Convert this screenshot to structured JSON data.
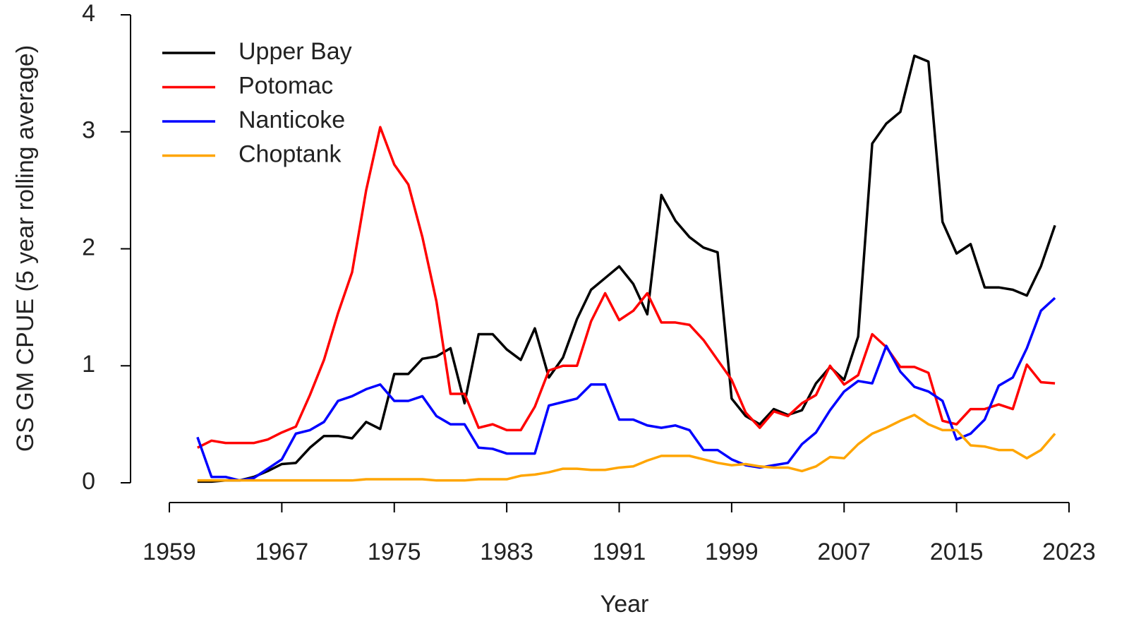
{
  "chart_data": {
    "type": "line",
    "xlabel": "Year",
    "ylabel": "GS GM CPUE (5 year rolling average)",
    "x": [
      1961,
      1962,
      1963,
      1964,
      1965,
      1966,
      1967,
      1968,
      1969,
      1970,
      1971,
      1972,
      1973,
      1974,
      1975,
      1976,
      1977,
      1978,
      1979,
      1980,
      1981,
      1982,
      1983,
      1984,
      1985,
      1986,
      1987,
      1988,
      1989,
      1990,
      1991,
      1992,
      1993,
      1994,
      1995,
      1996,
      1997,
      1998,
      1999,
      2000,
      2001,
      2002,
      2003,
      2004,
      2005,
      2006,
      2007,
      2008,
      2009,
      2010,
      2011,
      2012,
      2013,
      2014,
      2015,
      2016,
      2017,
      2018,
      2019,
      2020,
      2021,
      2022
    ],
    "series": [
      {
        "name": "Upper Bay",
        "color": "#000000",
        "values": [
          0.01,
          0.01,
          0.02,
          0.02,
          0.05,
          0.1,
          0.16,
          0.17,
          0.3,
          0.4,
          0.4,
          0.38,
          0.52,
          0.46,
          0.93,
          0.93,
          1.06,
          1.08,
          1.15,
          0.68,
          1.27,
          1.27,
          1.14,
          1.05,
          1.32,
          0.9,
          1.07,
          1.4,
          1.65,
          1.75,
          1.85,
          1.7,
          1.44,
          2.46,
          2.24,
          2.1,
          2.01,
          1.97,
          0.72,
          0.57,
          0.5,
          0.63,
          0.58,
          0.62,
          0.85,
          0.99,
          0.88,
          1.25,
          2.9,
          3.07,
          3.17,
          3.65,
          3.6,
          2.23,
          1.96,
          2.04,
          1.67,
          1.67,
          1.65,
          1.6,
          1.85,
          2.2
        ]
      },
      {
        "name": "Potomac",
        "color": "#ff0000",
        "values": [
          0.3,
          0.36,
          0.34,
          0.34,
          0.34,
          0.37,
          0.43,
          0.48,
          0.75,
          1.05,
          1.45,
          1.8,
          2.5,
          3.04,
          2.72,
          2.55,
          2.1,
          1.55,
          0.76,
          0.76,
          0.47,
          0.5,
          0.45,
          0.45,
          0.65,
          0.96,
          1.0,
          1.0,
          1.38,
          1.62,
          1.39,
          1.47,
          1.62,
          1.37,
          1.37,
          1.35,
          1.22,
          1.05,
          0.88,
          0.6,
          0.47,
          0.61,
          0.57,
          0.68,
          0.75,
          1.0,
          0.84,
          0.92,
          1.27,
          1.16,
          0.99,
          0.99,
          0.94,
          0.53,
          0.5,
          0.63,
          0.63,
          0.67,
          0.63,
          1.01,
          0.86,
          0.85
        ]
      },
      {
        "name": "Nanticoke",
        "color": "#0000ff",
        "values": [
          0.39,
          0.05,
          0.05,
          0.02,
          0.04,
          0.12,
          0.2,
          0.42,
          0.45,
          0.52,
          0.7,
          0.74,
          0.8,
          0.84,
          0.7,
          0.7,
          0.74,
          0.57,
          0.5,
          0.5,
          0.3,
          0.29,
          0.25,
          0.25,
          0.25,
          0.66,
          0.69,
          0.72,
          0.84,
          0.84,
          0.54,
          0.54,
          0.49,
          0.47,
          0.49,
          0.45,
          0.28,
          0.28,
          0.2,
          0.15,
          0.13,
          0.15,
          0.17,
          0.33,
          0.43,
          0.62,
          0.78,
          0.87,
          0.85,
          1.17,
          0.95,
          0.82,
          0.78,
          0.7,
          0.37,
          0.42,
          0.54,
          0.83,
          0.9,
          1.15,
          1.47,
          1.58
        ]
      },
      {
        "name": "Choptank",
        "color": "#ffa500",
        "values": [
          0.02,
          0.02,
          0.02,
          0.02,
          0.02,
          0.02,
          0.02,
          0.02,
          0.02,
          0.02,
          0.02,
          0.02,
          0.03,
          0.03,
          0.03,
          0.03,
          0.03,
          0.02,
          0.02,
          0.02,
          0.03,
          0.03,
          0.03,
          0.06,
          0.07,
          0.09,
          0.12,
          0.12,
          0.11,
          0.11,
          0.13,
          0.14,
          0.19,
          0.23,
          0.23,
          0.23,
          0.2,
          0.17,
          0.15,
          0.16,
          0.14,
          0.13,
          0.13,
          0.1,
          0.14,
          0.22,
          0.21,
          0.33,
          0.42,
          0.47,
          0.53,
          0.58,
          0.5,
          0.45,
          0.45,
          0.32,
          0.31,
          0.28,
          0.28,
          0.21,
          0.28,
          0.42
        ]
      }
    ],
    "xlim": [
      1959,
      2023
    ],
    "xticks": [
      1959,
      1967,
      1975,
      1983,
      1991,
      1999,
      2007,
      2015,
      2023
    ],
    "ylim": [
      0,
      4
    ],
    "yticks": [
      0,
      1,
      2,
      3,
      4
    ],
    "legend": "top-left"
  }
}
